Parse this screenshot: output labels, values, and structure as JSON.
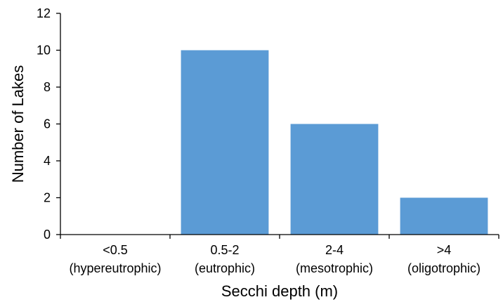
{
  "chart_data": {
    "type": "bar",
    "categories": [
      {
        "line1": "<0.5",
        "line2": "(hypereutrophic)"
      },
      {
        "line1": "0.5-2",
        "line2": "(eutrophic)"
      },
      {
        "line1": "2-4",
        "line2": "(mesotrophic)"
      },
      {
        "line1": ">4",
        "line2": "(oligotrophic)"
      }
    ],
    "values": [
      0,
      10,
      6,
      2
    ],
    "title": "",
    "xlabel": "Secchi depth (m)",
    "ylabel": "Number of Lakes",
    "ylim": [
      0,
      12
    ],
    "yticks": [
      0,
      2,
      4,
      6,
      8,
      10,
      12
    ],
    "grid": false,
    "legend": "none",
    "bar_color": "#5b9bd5",
    "axis_color": "#000000"
  }
}
